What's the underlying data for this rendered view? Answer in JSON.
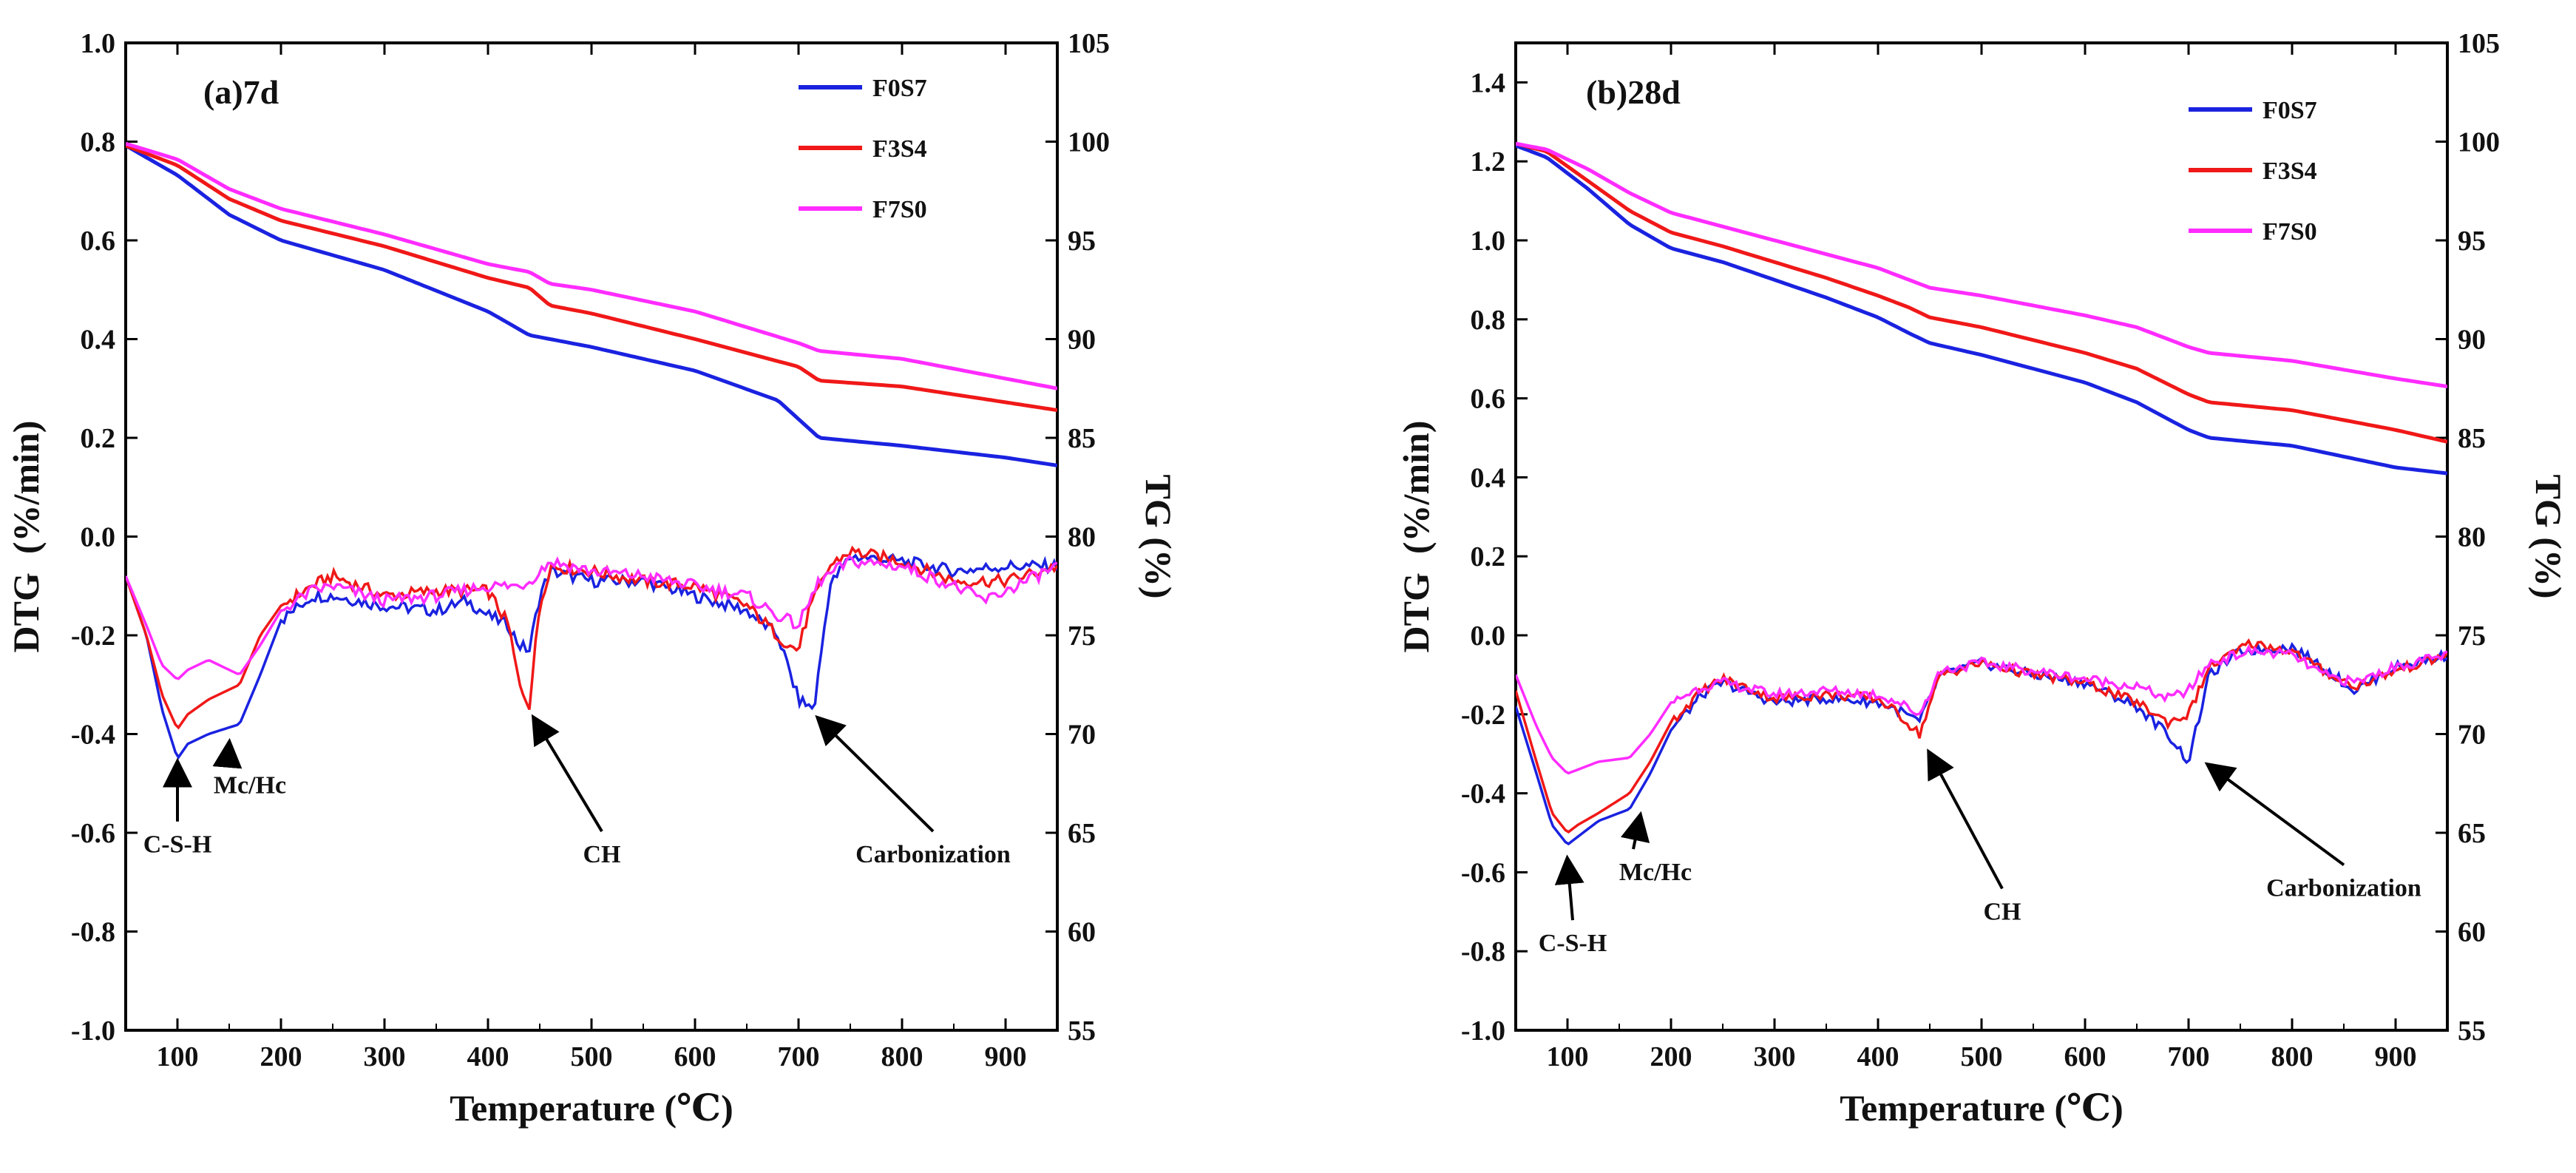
{
  "figure_description": "",
  "chart_data": [
    {
      "type": "line",
      "panel_label": "(a)7d",
      "xlabel": "Temperature (℃)",
      "ylabel_left": "DTG  (%/min)",
      "ylabel_right": "TG (%)",
      "xlim": [
        50,
        950
      ],
      "ylim_left": [
        -1.0,
        1.0
      ],
      "ylim_right": [
        55,
        105
      ],
      "x_ticks": [
        100,
        200,
        300,
        400,
        500,
        600,
        700,
        800,
        900
      ],
      "y_left_ticks": [
        -1.0,
        -0.8,
        -0.6,
        -0.4,
        -0.2,
        0.0,
        0.2,
        0.4,
        0.6,
        0.8,
        1.0
      ],
      "y_left_tick_labels": [
        "-1.0",
        "-0.8",
        "-0.6",
        "-0.4",
        "-0.2",
        "0.0",
        "0.2",
        "0.4",
        "0.6",
        "0.8",
        "1.0"
      ],
      "y_right_ticks": [
        55,
        60,
        65,
        70,
        75,
        80,
        85,
        90,
        95,
        100,
        105
      ],
      "legend": [
        "F0S7",
        "F3S4",
        "F7S0"
      ],
      "series_colors": [
        "#1a22e0",
        "#f01818",
        "#ff2cff"
      ],
      "tg_series": [
        {
          "name": "F0S7",
          "x": [
            50,
            100,
            150,
            200,
            300,
            400,
            440,
            500,
            600,
            680,
            720,
            800,
            900,
            950
          ],
          "tg": [
            99.8,
            98.3,
            96.3,
            95.0,
            93.5,
            91.4,
            90.2,
            89.6,
            88.4,
            86.9,
            85.0,
            84.6,
            84.0,
            83.6
          ]
        },
        {
          "name": "F3S4",
          "x": [
            50,
            100,
            150,
            200,
            300,
            400,
            440,
            460,
            500,
            600,
            700,
            720,
            800,
            900,
            950
          ],
          "tg": [
            99.8,
            98.8,
            97.1,
            96.0,
            94.7,
            93.1,
            92.6,
            91.7,
            91.3,
            90.0,
            88.6,
            87.9,
            87.6,
            86.8,
            86.4
          ]
        },
        {
          "name": "F7S0",
          "x": [
            50,
            100,
            150,
            200,
            300,
            400,
            440,
            460,
            500,
            600,
            700,
            720,
            800,
            900,
            950
          ],
          "tg": [
            99.9,
            99.1,
            97.6,
            96.6,
            95.3,
            93.8,
            93.4,
            92.8,
            92.5,
            91.4,
            89.8,
            89.4,
            89.0,
            88.0,
            87.5
          ]
        }
      ],
      "dtg_series": [
        {
          "name": "F0S7",
          "x": [
            50,
            70,
            85,
            100,
            110,
            130,
            160,
            180,
            200,
            230,
            250,
            300,
            350,
            380,
            400,
            420,
            430,
            440,
            450,
            460,
            500,
            550,
            600,
            650,
            680,
            700,
            715,
            730,
            750,
            800,
            850,
            900,
            950
          ],
          "dtg": [
            -0.08,
            -0.2,
            -0.35,
            -0.45,
            -0.42,
            -0.4,
            -0.38,
            -0.28,
            -0.17,
            -0.12,
            -0.12,
            -0.14,
            -0.15,
            -0.13,
            -0.16,
            -0.18,
            -0.22,
            -0.23,
            -0.12,
            -0.07,
            -0.09,
            -0.09,
            -0.12,
            -0.15,
            -0.2,
            -0.33,
            -0.35,
            -0.1,
            -0.04,
            -0.05,
            -0.07,
            -0.06,
            -0.06
          ]
        },
        {
          "name": "F3S4",
          "x": [
            50,
            70,
            85,
            100,
            110,
            130,
            160,
            180,
            200,
            230,
            250,
            300,
            350,
            400,
            420,
            430,
            440,
            450,
            460,
            500,
            550,
            600,
            650,
            690,
            700,
            710,
            730,
            750,
            800,
            850,
            900,
            950
          ],
          "dtg": [
            -0.08,
            -0.2,
            -0.32,
            -0.39,
            -0.36,
            -0.33,
            -0.3,
            -0.2,
            -0.14,
            -0.1,
            -0.08,
            -0.12,
            -0.11,
            -0.11,
            -0.18,
            -0.3,
            -0.34,
            -0.14,
            -0.06,
            -0.07,
            -0.09,
            -0.1,
            -0.14,
            -0.22,
            -0.23,
            -0.15,
            -0.06,
            -0.03,
            -0.05,
            -0.09,
            -0.09,
            -0.06
          ]
        },
        {
          "name": "F7S0",
          "x": [
            50,
            70,
            85,
            100,
            110,
            130,
            160,
            180,
            200,
            230,
            250,
            300,
            350,
            400,
            430,
            440,
            450,
            460,
            500,
            550,
            600,
            650,
            680,
            700,
            720,
            750,
            800,
            850,
            880,
            900,
            950
          ],
          "dtg": [
            -0.08,
            -0.18,
            -0.26,
            -0.29,
            -0.27,
            -0.25,
            -0.28,
            -0.22,
            -0.15,
            -0.11,
            -0.1,
            -0.13,
            -0.12,
            -0.1,
            -0.1,
            -0.09,
            -0.07,
            -0.05,
            -0.07,
            -0.08,
            -0.1,
            -0.12,
            -0.16,
            -0.18,
            -0.09,
            -0.05,
            -0.06,
            -0.1,
            -0.13,
            -0.11,
            -0.06
          ]
        }
      ],
      "annotations": [
        {
          "text": "C-S-H",
          "x": 100,
          "y": -0.64,
          "arrow_to": [
            100,
            -0.46
          ]
        },
        {
          "text": "Mc/Hc",
          "x": 170,
          "y": -0.52,
          "arrow_to": [
            150,
            -0.42
          ]
        },
        {
          "text": "CH",
          "x": 510,
          "y": -0.66,
          "arrow_to": [
            445,
            -0.37
          ]
        },
        {
          "text": "Carbonization",
          "x": 830,
          "y": -0.66,
          "arrow_to": [
            720,
            -0.37
          ]
        }
      ]
    },
    {
      "type": "line",
      "panel_label": "(b)28d",
      "xlabel": "Temperature (℃)",
      "ylabel_left": "DTG  (%/min)",
      "ylabel_right": "TG (%)",
      "xlim": [
        50,
        950
      ],
      "ylim_left": [
        -1.0,
        1.5
      ],
      "ylim_right": [
        55,
        105
      ],
      "x_ticks": [
        100,
        200,
        300,
        400,
        500,
        600,
        700,
        800,
        900
      ],
      "y_left_ticks": [
        -1.0,
        -0.8,
        -0.6,
        -0.4,
        -0.2,
        0.0,
        0.2,
        0.4,
        0.6,
        0.8,
        1.0,
        1.2,
        1.4
      ],
      "y_left_tick_labels": [
        "-1.0",
        "-0.8",
        "-0.6",
        "-0.4",
        "-0.2",
        "0.0",
        "0.2",
        "0.4",
        "0.6",
        "0.8",
        "1.0",
        "1.2",
        "1.4"
      ],
      "y_right_ticks": [
        55,
        60,
        65,
        70,
        75,
        80,
        85,
        90,
        95,
        100,
        105
      ],
      "legend": [
        "F0S7",
        "F3S4",
        "F7S0"
      ],
      "series_colors": [
        "#1a22e0",
        "#f01818",
        "#ff2cff"
      ],
      "tg_series": [
        {
          "name": "F0S7",
          "x": [
            50,
            80,
            120,
            160,
            200,
            250,
            300,
            350,
            400,
            430,
            450,
            500,
            600,
            650,
            700,
            720,
            800,
            900,
            950
          ],
          "tg": [
            99.8,
            99.2,
            97.6,
            95.8,
            94.6,
            93.9,
            93.0,
            92.1,
            91.1,
            90.3,
            89.8,
            89.2,
            87.8,
            86.8,
            85.4,
            85.0,
            84.6,
            83.5,
            83.2
          ]
        },
        {
          "name": "F3S4",
          "x": [
            50,
            80,
            120,
            160,
            200,
            250,
            300,
            350,
            400,
            430,
            450,
            500,
            600,
            650,
            700,
            720,
            800,
            900,
            950
          ],
          "tg": [
            99.9,
            99.5,
            98.0,
            96.5,
            95.4,
            94.7,
            93.9,
            93.1,
            92.2,
            91.6,
            91.1,
            90.6,
            89.3,
            88.5,
            87.2,
            86.8,
            86.4,
            85.4,
            84.8
          ]
        },
        {
          "name": "F7S0",
          "x": [
            50,
            80,
            120,
            160,
            200,
            250,
            300,
            350,
            400,
            430,
            450,
            500,
            600,
            650,
            700,
            720,
            800,
            900,
            950
          ],
          "tg": [
            99.9,
            99.6,
            98.6,
            97.4,
            96.4,
            95.7,
            95.0,
            94.3,
            93.6,
            93.0,
            92.6,
            92.2,
            91.2,
            90.6,
            89.6,
            89.3,
            88.9,
            88.0,
            87.6
          ]
        }
      ],
      "dtg_series": [
        {
          "name": "F0S7",
          "x": [
            50,
            70,
            85,
            100,
            110,
            130,
            160,
            180,
            200,
            230,
            250,
            300,
            350,
            400,
            420,
            440,
            460,
            500,
            550,
            600,
            650,
            680,
            700,
            720,
            750,
            800,
            830,
            860,
            900,
            950
          ],
          "dtg": [
            -0.18,
            -0.35,
            -0.48,
            -0.53,
            -0.51,
            -0.47,
            -0.44,
            -0.35,
            -0.24,
            -0.15,
            -0.12,
            -0.17,
            -0.16,
            -0.17,
            -0.19,
            -0.22,
            -0.1,
            -0.07,
            -0.1,
            -0.12,
            -0.18,
            -0.25,
            -0.32,
            -0.1,
            -0.04,
            -0.03,
            -0.08,
            -0.14,
            -0.08,
            -0.05
          ]
        },
        {
          "name": "F3S4",
          "x": [
            50,
            70,
            85,
            100,
            110,
            130,
            160,
            180,
            200,
            230,
            250,
            300,
            350,
            400,
            420,
            440,
            460,
            500,
            550,
            600,
            650,
            680,
            700,
            720,
            760,
            800,
            830,
            860,
            900,
            950
          ],
          "dtg": [
            -0.14,
            -0.32,
            -0.45,
            -0.5,
            -0.48,
            -0.45,
            -0.4,
            -0.32,
            -0.22,
            -0.14,
            -0.11,
            -0.16,
            -0.15,
            -0.16,
            -0.2,
            -0.25,
            -0.1,
            -0.07,
            -0.1,
            -0.12,
            -0.17,
            -0.22,
            -0.2,
            -0.08,
            -0.02,
            -0.04,
            -0.09,
            -0.13,
            -0.09,
            -0.05
          ]
        },
        {
          "name": "F7S0",
          "x": [
            50,
            70,
            85,
            100,
            110,
            130,
            160,
            180,
            200,
            230,
            250,
            300,
            350,
            400,
            420,
            440,
            460,
            500,
            550,
            600,
            650,
            680,
            700,
            720,
            760,
            800,
            830,
            860,
            900,
            950
          ],
          "dtg": [
            -0.1,
            -0.23,
            -0.31,
            -0.35,
            -0.34,
            -0.32,
            -0.31,
            -0.25,
            -0.17,
            -0.13,
            -0.12,
            -0.15,
            -0.14,
            -0.15,
            -0.17,
            -0.2,
            -0.09,
            -0.07,
            -0.09,
            -0.11,
            -0.13,
            -0.16,
            -0.14,
            -0.07,
            -0.04,
            -0.05,
            -0.1,
            -0.12,
            -0.08,
            -0.05
          ]
        }
      ],
      "annotations": [
        {
          "text": "C-S-H",
          "x": 105,
          "y": -0.8,
          "arrow_to": [
            100,
            -0.57
          ]
        },
        {
          "text": "Mc/Hc",
          "x": 185,
          "y": -0.62,
          "arrow_to": [
            170,
            -0.46
          ]
        },
        {
          "text": "CH",
          "x": 520,
          "y": -0.72,
          "arrow_to": [
            450,
            -0.3
          ]
        },
        {
          "text": "Carbonization",
          "x": 850,
          "y": -0.66,
          "arrow_to": [
            720,
            -0.33
          ]
        }
      ]
    }
  ]
}
